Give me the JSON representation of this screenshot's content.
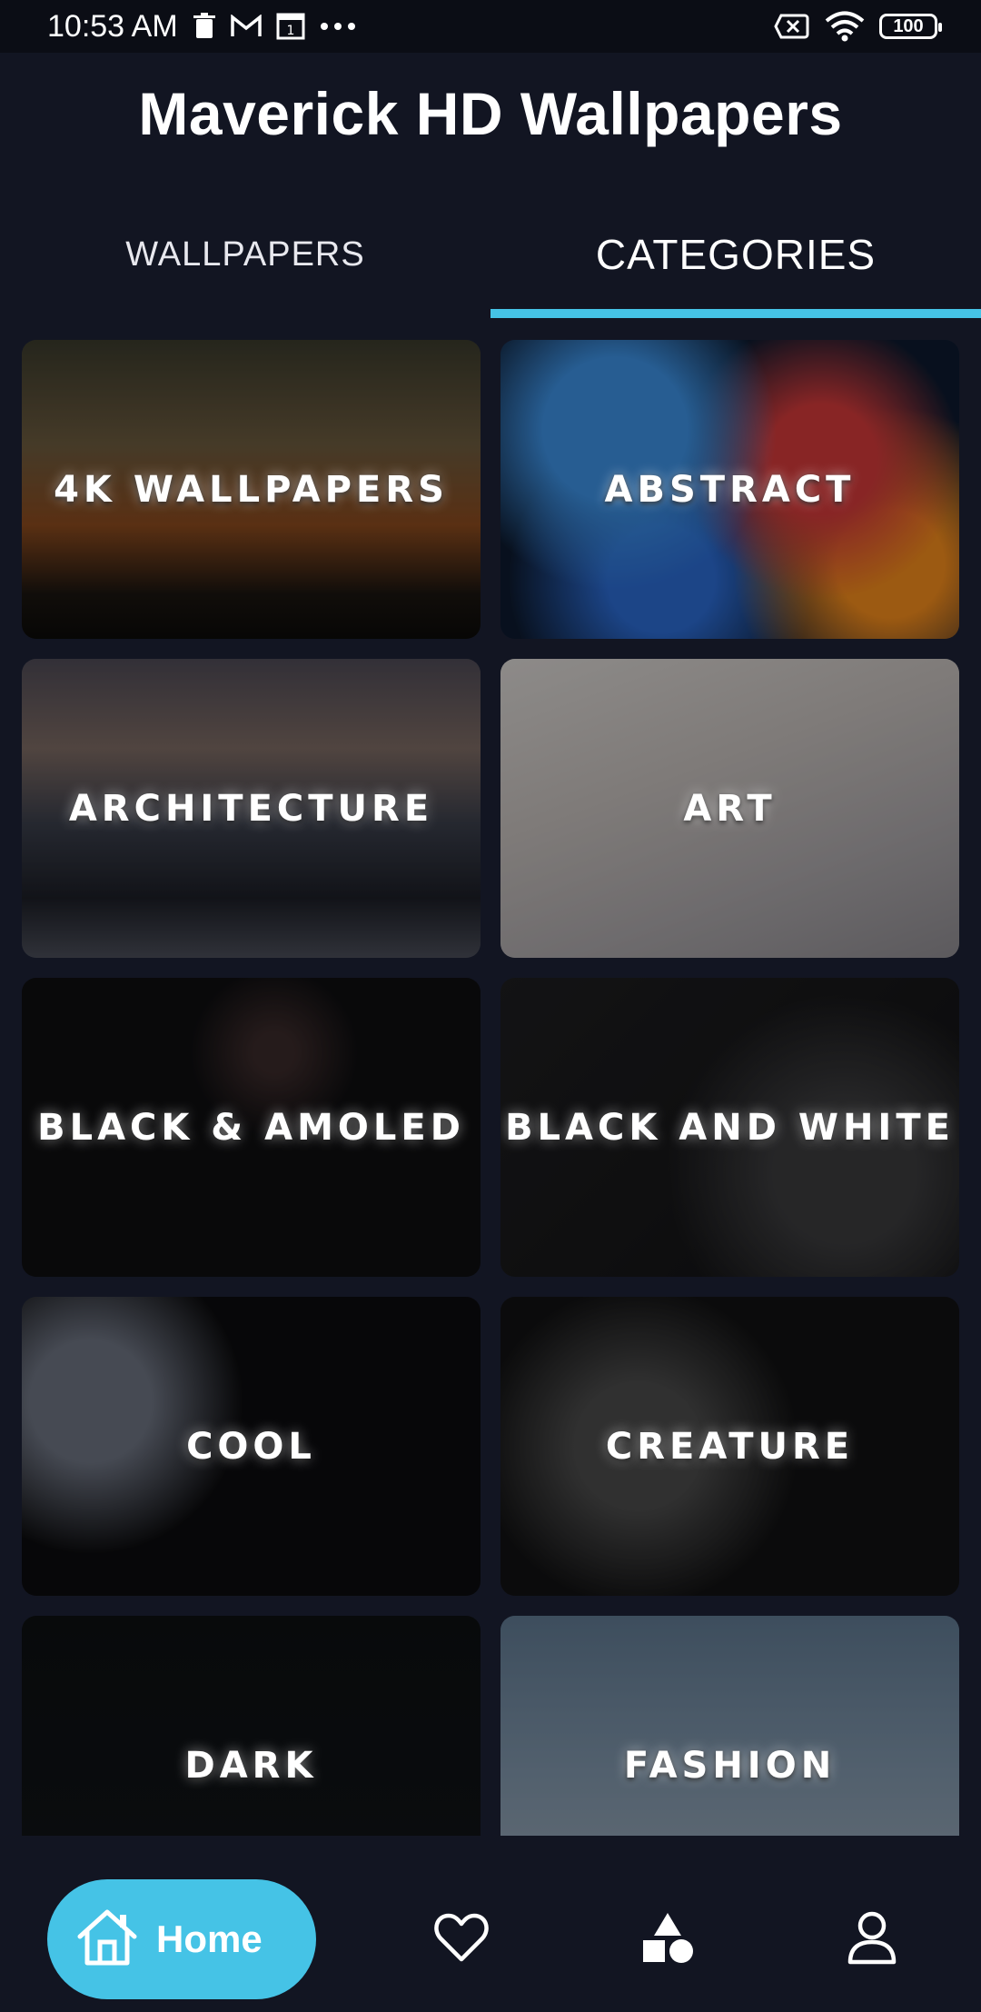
{
  "status_bar": {
    "time": "10:53 AM",
    "left_icons": [
      "trash-icon",
      "gmail-icon",
      "notification-box-icon",
      "more-dots-icon"
    ],
    "right_icons": [
      "sim-x-icon",
      "wifi-icon",
      "battery-icon"
    ],
    "battery": "100"
  },
  "app": {
    "title": "Maverick HD Wallpapers"
  },
  "tabs": [
    {
      "label": "WALLPAPERS",
      "active": false
    },
    {
      "label": "CATEGORIES",
      "active": true
    }
  ],
  "categories": [
    {
      "label": "4K WALLPAPERS"
    },
    {
      "label": "ABSTRACT"
    },
    {
      "label": "ARCHITECTURE"
    },
    {
      "label": "ART"
    },
    {
      "label": "BLACK & AMOLED"
    },
    {
      "label": "BLACK AND WHITE"
    },
    {
      "label": "COOL"
    },
    {
      "label": "CREATURE"
    },
    {
      "label": "DARK"
    },
    {
      "label": "FASHION"
    }
  ],
  "bottom_nav": {
    "home_label": "Home",
    "items": [
      "home-icon",
      "heart-icon",
      "shapes-icon",
      "profile-icon"
    ]
  },
  "colors": {
    "background": "#121522",
    "accent": "#45c3e6"
  }
}
